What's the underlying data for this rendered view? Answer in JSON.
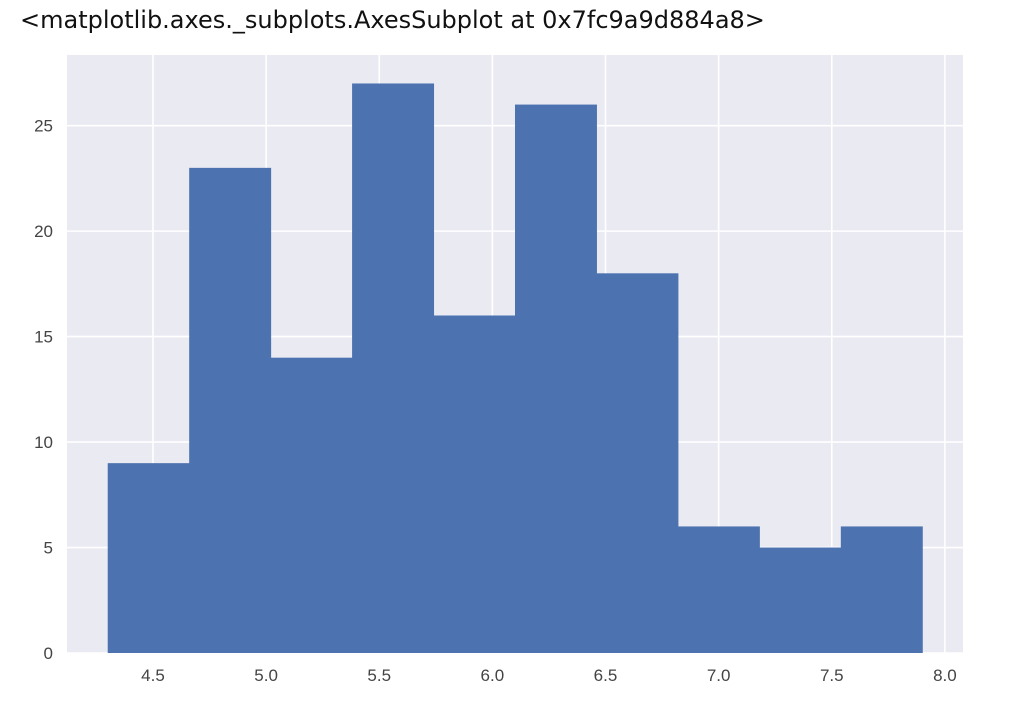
{
  "output_text": "<matplotlib.axes._subplots.AxesSubplot at 0x7fc9a9d884a8>",
  "colors": {
    "background": "#eaeaf2",
    "grid": "#ffffff",
    "bar": "#4c72b0"
  },
  "chart_data": {
    "type": "bar",
    "style": "histogram",
    "bin_edges": [
      4.3,
      4.66,
      5.02,
      5.38,
      5.74,
      6.1,
      6.46,
      6.82,
      7.18,
      7.54,
      7.9
    ],
    "values": [
      9,
      23,
      14,
      27,
      16,
      26,
      18,
      6,
      5,
      6
    ],
    "xlim": [
      4.12,
      8.08
    ],
    "ylim": [
      0,
      28.35
    ],
    "xticks": [
      "4.5",
      "5.0",
      "5.5",
      "6.0",
      "6.5",
      "7.0",
      "7.5",
      "8.0"
    ],
    "xtick_values": [
      4.5,
      5.0,
      5.5,
      6.0,
      6.5,
      7.0,
      7.5,
      8.0
    ],
    "yticks": [
      "0",
      "5",
      "10",
      "15",
      "20",
      "25"
    ],
    "ytick_values": [
      0,
      5,
      10,
      15,
      20,
      25
    ],
    "grid": true,
    "title": "",
    "xlabel": "",
    "ylabel": ""
  }
}
